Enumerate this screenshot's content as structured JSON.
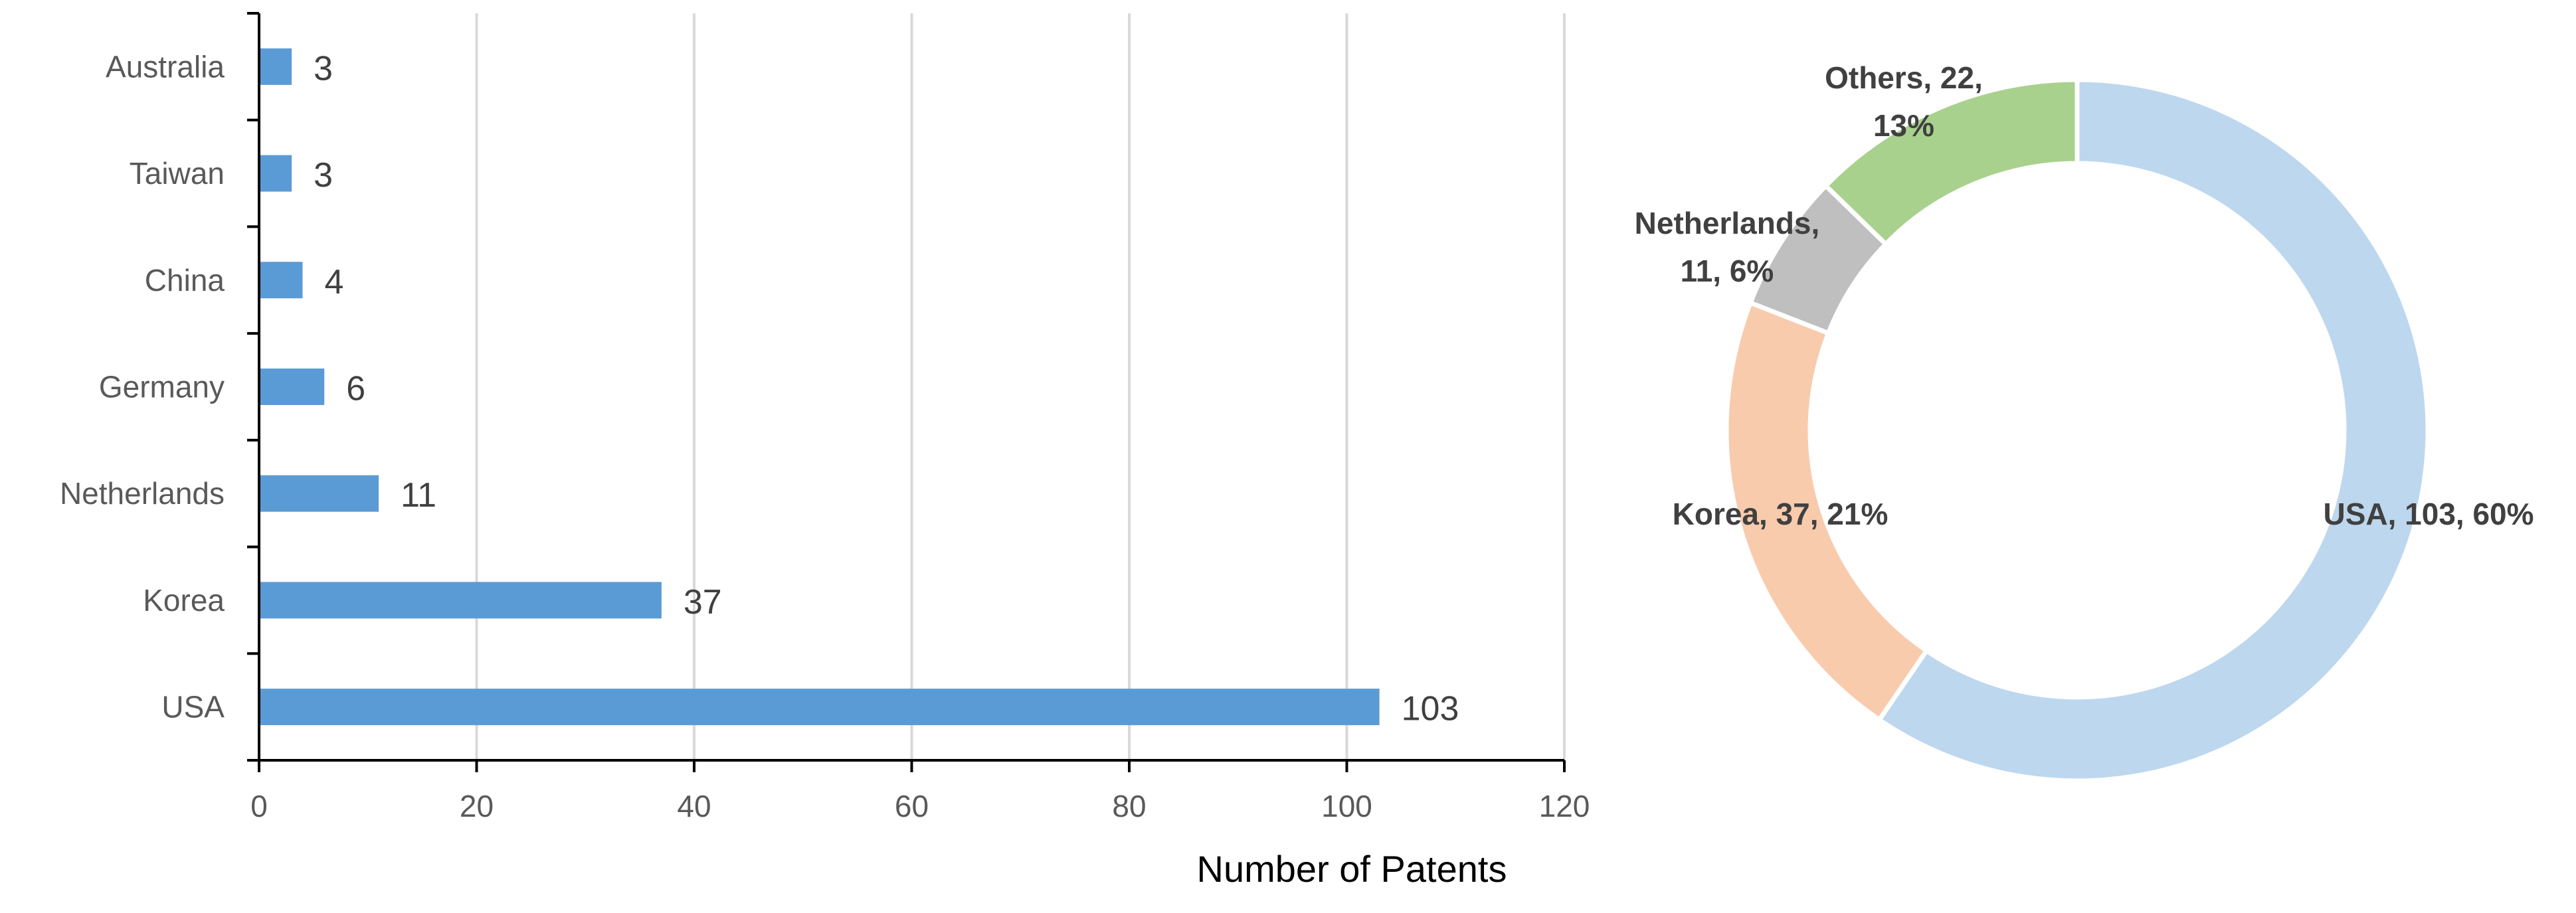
{
  "colors": {
    "bar": "#5B9BD5",
    "grid": "#D9D9D9",
    "axis": "#000000",
    "tick_text": "#595959",
    "label_text": "#404040",
    "USA": "#BDD7EE",
    "Korea": "#F8CBAD",
    "Netherlands": "#BFBFBF",
    "Others": "#A9D18E"
  },
  "chart_data": [
    {
      "type": "bar",
      "orientation": "horizontal",
      "categories": [
        "USA",
        "Korea",
        "Netherlands",
        "Germany",
        "China",
        "Taiwan",
        "Australia"
      ],
      "values": [
        103,
        37,
        11,
        6,
        4,
        3,
        3
      ],
      "data_labels": [
        "103",
        "37",
        "11",
        "6",
        "4",
        "3",
        "3"
      ],
      "title": "",
      "xlabel": "Number of Patents",
      "ylabel": "",
      "xlim": [
        0,
        120
      ],
      "xticks": [
        0,
        20,
        40,
        60,
        80,
        100,
        120
      ],
      "xtick_labels": [
        "0",
        "20",
        "40",
        "60",
        "80",
        "100",
        "120"
      ],
      "grid": "vertical"
    },
    {
      "type": "pie",
      "style": "donut",
      "categories": [
        "USA",
        "Korea",
        "Netherlands",
        "Others"
      ],
      "values": [
        103,
        37,
        11,
        22
      ],
      "percents": [
        60,
        21,
        6,
        13
      ],
      "labels": [
        [
          "USA, 103, 60%"
        ],
        [
          "Korea, 37, 21%"
        ],
        [
          "Netherlands,",
          "11, 6%"
        ],
        [
          "Others, 22,",
          "13%"
        ]
      ],
      "legend": "none"
    }
  ]
}
